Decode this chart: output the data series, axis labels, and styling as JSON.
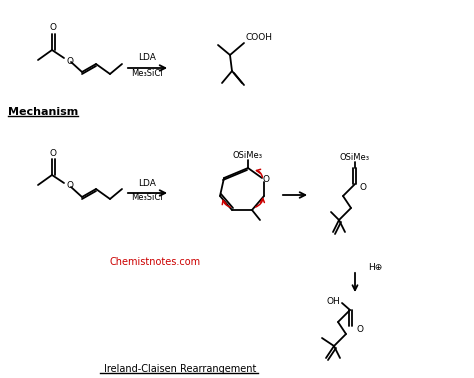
{
  "title": "Ireland-Claisen Rearrangement",
  "mechanism_label": "Mechanism",
  "website": "Chemistnotes.com",
  "lda_label": "LDA",
  "me3sicl_label": "Me₃SiCl",
  "cooh_label": "COOH",
  "osime3_label": "OSiMe₃",
  "o_label": "O",
  "oh_label": "OH",
  "h_plus_label": "H⊕",
  "background_color": "#ffffff",
  "line_color": "#000000",
  "red_color": "#cc0000",
  "text_color": "#000000",
  "website_color": "#cc0000"
}
